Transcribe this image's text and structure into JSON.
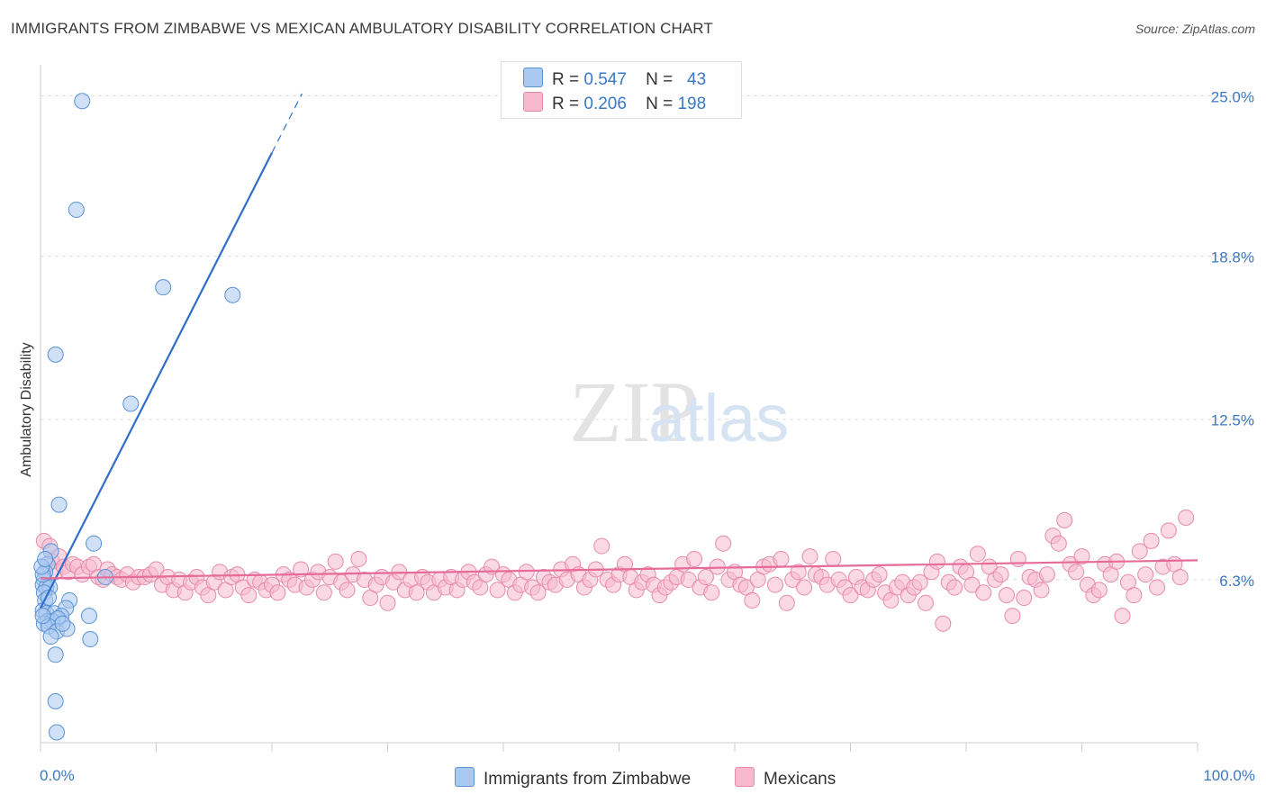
{
  "title": "IMMIGRANTS FROM ZIMBABWE VS MEXICAN AMBULATORY DISABILITY CORRELATION CHART",
  "source": "Source: ZipAtlas.com",
  "watermark": {
    "zip": "ZIP",
    "atlas": "atlas"
  },
  "legend": {
    "r1_label": "R =",
    "r1_value": "0.547",
    "n1_label": "N =",
    "n1_value": "43",
    "r2_label": "R =",
    "r2_value": "0.206",
    "n2_label": "N =",
    "n2_value": "198"
  },
  "bottom_legend": {
    "series1": "Immigrants from Zimbabwe",
    "series2": "Mexicans"
  },
  "colors": {
    "series1_fill": "#a9c9f0",
    "series1_stroke": "#5a92d6",
    "series1_line": "#2f6fc9",
    "series2_fill": "#f7b9cd",
    "series2_stroke": "#e889a8",
    "series2_line": "#e56b98",
    "tick_label": "#3b78c4",
    "grid": "#dddddd"
  },
  "chart_data": {
    "type": "scatter",
    "title": "IMMIGRANTS FROM ZIMBABWE VS MEXICAN AMBULATORY DISABILITY CORRELATION CHART",
    "xlabel": "",
    "ylabel": "Ambulatory Disability",
    "xlim": [
      0,
      100
    ],
    "ylim": [
      0,
      26.2
    ],
    "x_tick_labels": [
      "0.0%",
      "100.0%"
    ],
    "y_ticks": [
      6.3,
      12.5,
      18.8,
      25.0
    ],
    "y_tick_labels": [
      "6.3%",
      "12.5%",
      "18.8%",
      "25.0%"
    ],
    "grid": true,
    "legend_position": "top-center",
    "series": [
      {
        "name": "Immigrants from Zimbabwe",
        "R": 0.547,
        "N": 43,
        "trend": {
          "x0": 0,
          "y0": 5.2,
          "x1": 20,
          "y1": 22.8,
          "dash_to_x": 22.6
        },
        "points": [
          [
            3.6,
            24.8
          ],
          [
            3.1,
            20.6
          ],
          [
            10.6,
            17.6
          ],
          [
            16.6,
            17.3
          ],
          [
            1.3,
            15.0
          ],
          [
            7.8,
            13.1
          ],
          [
            1.6,
            9.2
          ],
          [
            4.6,
            7.7
          ],
          [
            0.9,
            7.4
          ],
          [
            0.6,
            6.9
          ],
          [
            0.4,
            6.6
          ],
          [
            0.3,
            6.3
          ],
          [
            0.2,
            6.1
          ],
          [
            0.5,
            6.0
          ],
          [
            0.8,
            6.0
          ],
          [
            0.3,
            5.8
          ],
          [
            0.4,
            5.5
          ],
          [
            2.5,
            5.5
          ],
          [
            0.2,
            5.1
          ],
          [
            0.5,
            5.0
          ],
          [
            1.2,
            5.0
          ],
          [
            2.2,
            5.2
          ],
          [
            1.8,
            4.9
          ],
          [
            0.6,
            4.7
          ],
          [
            1.0,
            4.7
          ],
          [
            1.5,
            4.8
          ],
          [
            0.3,
            4.6
          ],
          [
            0.7,
            4.5
          ],
          [
            4.2,
            4.9
          ],
          [
            1.4,
            4.3
          ],
          [
            2.3,
            4.4
          ],
          [
            0.9,
            4.1
          ],
          [
            4.3,
            4.0
          ],
          [
            1.3,
            3.4
          ],
          [
            1.3,
            1.6
          ],
          [
            1.4,
            0.4
          ],
          [
            0.2,
            6.5
          ],
          [
            0.7,
            5.6
          ],
          [
            0.1,
            6.8
          ],
          [
            1.9,
            4.6
          ],
          [
            0.4,
            7.1
          ],
          [
            0.2,
            4.9
          ],
          [
            5.6,
            6.4
          ]
        ]
      },
      {
        "name": "Mexicans",
        "R": 0.206,
        "N": 198,
        "trend": {
          "x0": 0,
          "y0": 6.35,
          "x1": 100,
          "y1": 7.05
        },
        "points": [
          [
            0.3,
            7.8
          ],
          [
            0.8,
            7.6
          ],
          [
            1.0,
            7.0
          ],
          [
            1.3,
            6.6
          ],
          [
            1.6,
            7.2
          ],
          [
            2.0,
            6.8
          ],
          [
            2.4,
            6.6
          ],
          [
            2.8,
            6.9
          ],
          [
            3.2,
            6.8
          ],
          [
            3.6,
            6.5
          ],
          [
            4.2,
            6.8
          ],
          [
            4.6,
            6.9
          ],
          [
            5.0,
            6.4
          ],
          [
            5.4,
            6.3
          ],
          [
            5.8,
            6.7
          ],
          [
            6.2,
            6.5
          ],
          [
            6.6,
            6.4
          ],
          [
            7.0,
            6.3
          ],
          [
            7.5,
            6.5
          ],
          [
            8.0,
            6.2
          ],
          [
            8.5,
            6.4
          ],
          [
            9.0,
            6.4
          ],
          [
            9.5,
            6.5
          ],
          [
            10.0,
            6.7
          ],
          [
            10.5,
            6.1
          ],
          [
            11.0,
            6.4
          ],
          [
            11.5,
            5.9
          ],
          [
            12.0,
            6.3
          ],
          [
            12.5,
            5.8
          ],
          [
            13.0,
            6.2
          ],
          [
            13.5,
            6.4
          ],
          [
            14.0,
            6.0
          ],
          [
            14.5,
            5.7
          ],
          [
            15.0,
            6.2
          ],
          [
            15.5,
            6.6
          ],
          [
            16.0,
            5.9
          ],
          [
            16.5,
            6.4
          ],
          [
            17.0,
            6.5
          ],
          [
            17.5,
            6.0
          ],
          [
            18.0,
            5.7
          ],
          [
            18.5,
            6.3
          ],
          [
            19.0,
            6.2
          ],
          [
            19.5,
            5.9
          ],
          [
            20.0,
            6.1
          ],
          [
            20.5,
            5.8
          ],
          [
            21.0,
            6.5
          ],
          [
            21.5,
            6.3
          ],
          [
            22.0,
            6.1
          ],
          [
            22.5,
            6.7
          ],
          [
            23.0,
            6.0
          ],
          [
            23.5,
            6.3
          ],
          [
            24.0,
            6.6
          ],
          [
            24.5,
            5.8
          ],
          [
            25.0,
            6.4
          ],
          [
            25.5,
            7.0
          ],
          [
            26.0,
            6.2
          ],
          [
            26.5,
            5.9
          ],
          [
            27.0,
            6.5
          ],
          [
            27.5,
            7.1
          ],
          [
            28.0,
            6.3
          ],
          [
            28.5,
            5.6
          ],
          [
            29.0,
            6.1
          ],
          [
            29.5,
            6.4
          ],
          [
            30.0,
            5.4
          ],
          [
            30.5,
            6.2
          ],
          [
            31.0,
            6.6
          ],
          [
            31.5,
            5.9
          ],
          [
            32.0,
            6.3
          ],
          [
            32.5,
            5.8
          ],
          [
            33.0,
            6.4
          ],
          [
            33.5,
            6.2
          ],
          [
            34.0,
            5.8
          ],
          [
            34.5,
            6.3
          ],
          [
            35.0,
            6.0
          ],
          [
            35.5,
            6.4
          ],
          [
            36.0,
            5.9
          ],
          [
            36.5,
            6.3
          ],
          [
            37.0,
            6.6
          ],
          [
            37.5,
            6.2
          ],
          [
            38.0,
            6.0
          ],
          [
            38.5,
            6.5
          ],
          [
            39.0,
            6.8
          ],
          [
            39.5,
            5.9
          ],
          [
            40.0,
            6.5
          ],
          [
            40.5,
            6.3
          ],
          [
            41.0,
            5.8
          ],
          [
            41.5,
            6.1
          ],
          [
            42.0,
            6.6
          ],
          [
            42.5,
            6.0
          ],
          [
            43.0,
            5.8
          ],
          [
            43.5,
            6.4
          ],
          [
            44.0,
            6.2
          ],
          [
            44.5,
            6.1
          ],
          [
            45.0,
            6.7
          ],
          [
            45.5,
            6.3
          ],
          [
            46.0,
            6.9
          ],
          [
            46.5,
            6.5
          ],
          [
            47.0,
            6.0
          ],
          [
            47.5,
            6.3
          ],
          [
            48.0,
            6.7
          ],
          [
            48.5,
            7.6
          ],
          [
            49.0,
            6.3
          ],
          [
            49.5,
            6.1
          ],
          [
            50.0,
            6.5
          ],
          [
            50.5,
            6.9
          ],
          [
            51.0,
            6.4
          ],
          [
            51.5,
            5.9
          ],
          [
            52.0,
            6.2
          ],
          [
            52.5,
            6.5
          ],
          [
            53.0,
            6.1
          ],
          [
            53.5,
            5.7
          ],
          [
            54.0,
            6.0
          ],
          [
            54.5,
            6.2
          ],
          [
            55.0,
            6.4
          ],
          [
            55.5,
            6.9
          ],
          [
            56.0,
            6.3
          ],
          [
            56.5,
            7.1
          ],
          [
            57.0,
            6.0
          ],
          [
            57.5,
            6.4
          ],
          [
            58.0,
            5.8
          ],
          [
            58.5,
            6.8
          ],
          [
            59.0,
            7.7
          ],
          [
            59.5,
            6.3
          ],
          [
            60.0,
            6.6
          ],
          [
            60.5,
            6.1
          ],
          [
            61.0,
            6.0
          ],
          [
            61.5,
            5.5
          ],
          [
            62.0,
            6.3
          ],
          [
            62.5,
            6.8
          ],
          [
            63.0,
            6.9
          ],
          [
            63.5,
            6.1
          ],
          [
            64.0,
            7.1
          ],
          [
            64.5,
            5.4
          ],
          [
            65.0,
            6.3
          ],
          [
            65.5,
            6.6
          ],
          [
            66.0,
            6.0
          ],
          [
            66.5,
            7.2
          ],
          [
            67.0,
            6.5
          ],
          [
            67.5,
            6.4
          ],
          [
            68.0,
            6.1
          ],
          [
            68.5,
            7.1
          ],
          [
            69.0,
            6.3
          ],
          [
            69.5,
            6.0
          ],
          [
            70.0,
            5.7
          ],
          [
            70.5,
            6.4
          ],
          [
            71.0,
            6.0
          ],
          [
            71.5,
            5.9
          ],
          [
            72.0,
            6.3
          ],
          [
            72.5,
            6.5
          ],
          [
            73.0,
            5.8
          ],
          [
            73.5,
            5.5
          ],
          [
            74.0,
            6.0
          ],
          [
            74.5,
            6.2
          ],
          [
            75.0,
            5.7
          ],
          [
            75.5,
            6.0
          ],
          [
            76.0,
            6.2
          ],
          [
            76.5,
            5.4
          ],
          [
            77.0,
            6.6
          ],
          [
            77.5,
            7.0
          ],
          [
            78.0,
            4.6
          ],
          [
            78.5,
            6.2
          ],
          [
            79.0,
            6.0
          ],
          [
            79.5,
            6.8
          ],
          [
            80.0,
            6.6
          ],
          [
            80.5,
            6.1
          ],
          [
            81.0,
            7.3
          ],
          [
            81.5,
            5.8
          ],
          [
            82.0,
            6.8
          ],
          [
            82.5,
            6.3
          ],
          [
            83.0,
            6.5
          ],
          [
            83.5,
            5.7
          ],
          [
            84.0,
            4.9
          ],
          [
            84.5,
            7.1
          ],
          [
            85.0,
            5.6
          ],
          [
            85.5,
            6.4
          ],
          [
            86.0,
            6.3
          ],
          [
            86.5,
            5.9
          ],
          [
            87.0,
            6.5
          ],
          [
            87.5,
            8.0
          ],
          [
            88.0,
            7.7
          ],
          [
            88.5,
            8.6
          ],
          [
            89.0,
            6.9
          ],
          [
            89.5,
            6.6
          ],
          [
            90.0,
            7.2
          ],
          [
            90.5,
            6.1
          ],
          [
            91.0,
            5.7
          ],
          [
            91.5,
            5.9
          ],
          [
            92.0,
            6.9
          ],
          [
            92.5,
            6.5
          ],
          [
            93.0,
            7.0
          ],
          [
            93.5,
            4.9
          ],
          [
            94.0,
            6.2
          ],
          [
            94.5,
            5.7
          ],
          [
            95.0,
            7.4
          ],
          [
            95.5,
            6.5
          ],
          [
            96.0,
            7.8
          ],
          [
            96.5,
            6.0
          ],
          [
            97.0,
            6.8
          ],
          [
            97.5,
            8.2
          ],
          [
            98.0,
            6.9
          ],
          [
            98.5,
            6.4
          ],
          [
            99.0,
            8.7
          ]
        ]
      }
    ]
  }
}
